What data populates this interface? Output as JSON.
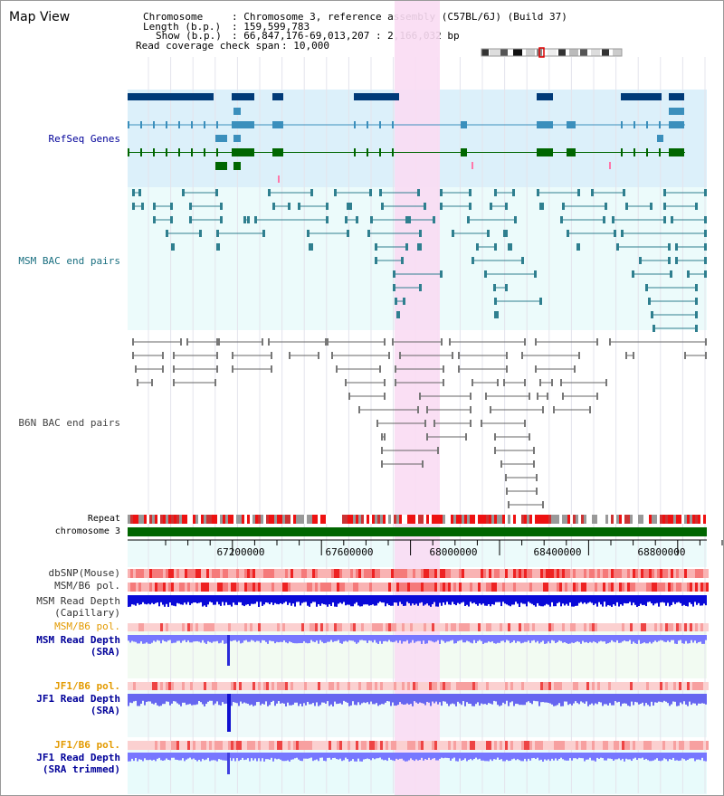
{
  "header": {
    "title": "Map View",
    "chromosome_key": "Chromosome",
    "chromosome_val": ": Chromosome 3, reference assembly (C57BL/6J) (Build 37)",
    "length_key": "Length (b.p.)",
    "length_val": ": 159,599,783",
    "show_key": "Show (b.p.)",
    "show_val": ": 66,847,176-69,013,207 : 2,166,032 bp",
    "coverage_key": "Read coverage check span",
    "coverage_val": ": 10,000"
  },
  "tracks": {
    "refseq": "RefSeq Genes",
    "msm_bac": "MSM BAC end pairs",
    "b6n_bac": "B6N BAC end pairs",
    "repeat": "Repeat",
    "chromosome": "chromosome 3",
    "dbsnp": "dbSNP(Mouse)",
    "msm_b6_pol_1": "MSM/B6 pol.",
    "msm_depth_cap_1": "MSM Read Depth",
    "msm_depth_cap_2": "(Capillary)",
    "msm_b6_pol_2": "MSM/B6 pol.",
    "msm_depth_sra_1": "MSM Read Depth",
    "msm_depth_sra_2": "(SRA)",
    "jf1_b6_pol_1": "JF1/B6 pol.",
    "jf1_depth_sra_1": "JF1 Read Depth",
    "jf1_depth_sra_2": "(SRA)",
    "jf1_b6_pol_2": "JF1/B6 pol.",
    "jf1_depth_trim_1": "JF1 Read Depth",
    "jf1_depth_trim_2": "(SRA trimmed)"
  },
  "ruler": {
    "ticks": [
      "67200000",
      "67600000",
      "68000000",
      "68400000",
      "68800000"
    ]
  },
  "colors": {
    "refseq_bg": "#dcf0fa",
    "bac_bg": "#ecfbfb",
    "highlight": "#f9dcf3",
    "gene_dark": "#003a78",
    "gene_mid": "#3b8fbc",
    "gene_green": "#006600",
    "msm_line": "#2f7f8f",
    "b6n_line": "#666666",
    "depth_blue": "#0000dd",
    "depth_light": "#7777ff",
    "label_navy": "#000099",
    "label_teal": "#1a6f80",
    "label_orange": "#e39a00"
  }
}
